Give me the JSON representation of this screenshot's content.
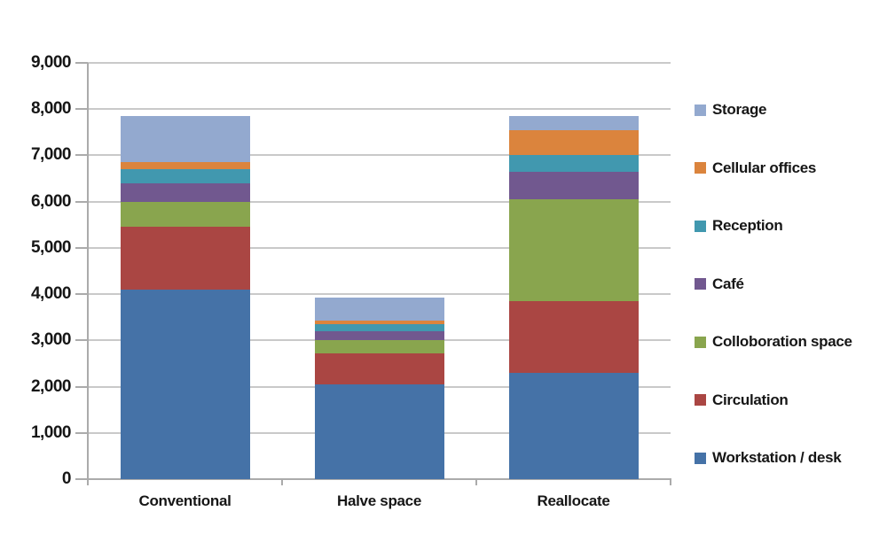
{
  "chart_data": {
    "type": "bar",
    "stacked": true,
    "title": "",
    "xlabel": "",
    "ylabel": "",
    "categories": [
      "Conventional",
      "Halve space",
      "Reallocate"
    ],
    "series": [
      {
        "name": "Workstation / desk",
        "color": "#4572A7",
        "values": [
          4100,
          2050,
          2300
        ]
      },
      {
        "name": "Circulation",
        "color": "#AA4643",
        "values": [
          1350,
          675,
          1550
        ]
      },
      {
        "name": "Colloboration space",
        "color": "#89A54E",
        "values": [
          550,
          275,
          2200
        ]
      },
      {
        "name": "Café",
        "color": "#71588F",
        "values": [
          400,
          200,
          600
        ]
      },
      {
        "name": "Reception",
        "color": "#4198AF",
        "values": [
          300,
          150,
          350
        ]
      },
      {
        "name": "Cellular offices",
        "color": "#DB843D",
        "values": [
          150,
          75,
          550
        ]
      },
      {
        "name": "Storage",
        "color": "#93A9CF",
        "values": [
          1000,
          500,
          300
        ]
      }
    ],
    "totals": [
      7850,
      3925,
      7850
    ],
    "ylim": [
      0,
      9000
    ],
    "ytick_step": 1000,
    "ytick_labels": [
      "0",
      "1,000",
      "2,000",
      "3,000",
      "4,000",
      "5,000",
      "6,000",
      "7,000",
      "8,000",
      "9,000"
    ],
    "grid": true,
    "legend_position": "right",
    "legend_order_top_to_bottom": [
      "Storage",
      "Cellular offices",
      "Reception",
      "Café",
      "Colloboration space",
      "Circulation",
      "Workstation / desk"
    ],
    "colors": {
      "gridline": "#c9c9c9",
      "axis": "#ababab",
      "text": "#161616",
      "background": "#ffffff"
    }
  }
}
